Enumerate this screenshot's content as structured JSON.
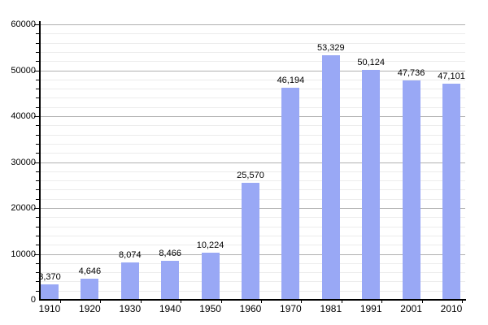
{
  "chart_data": {
    "type": "bar",
    "title": "",
    "xlabel": "",
    "ylabel": "",
    "categories": [
      "1910",
      "1920",
      "1930",
      "1940",
      "1950",
      "1960",
      "1970",
      "1981",
      "1991",
      "2001",
      "2010"
    ],
    "values": [
      3370,
      4646,
      8074,
      8466,
      10224,
      25570,
      46194,
      53329,
      50124,
      47736,
      47101
    ],
    "value_labels": [
      "3,370",
      "4,646",
      "8,074",
      "8,466",
      "10,224",
      "25,570",
      "46,194",
      "53,329",
      "50,124",
      "47,736",
      "47,101"
    ],
    "ylim": [
      0,
      60000
    ],
    "y_major_step": 10000,
    "y_minor_step": 2000,
    "y_tick_labels": [
      "0",
      "10000",
      "20000",
      "30000",
      "40000",
      "50000",
      "60000"
    ],
    "grid": "horizontal-major-and-minor",
    "legend": "none",
    "colors": {
      "background": "#ffffff",
      "bar_fill": "#99A8F5",
      "major_grid": "#b0b0b0",
      "minor_grid": "#ececec",
      "axis": "#000000",
      "text": "#000000"
    }
  }
}
